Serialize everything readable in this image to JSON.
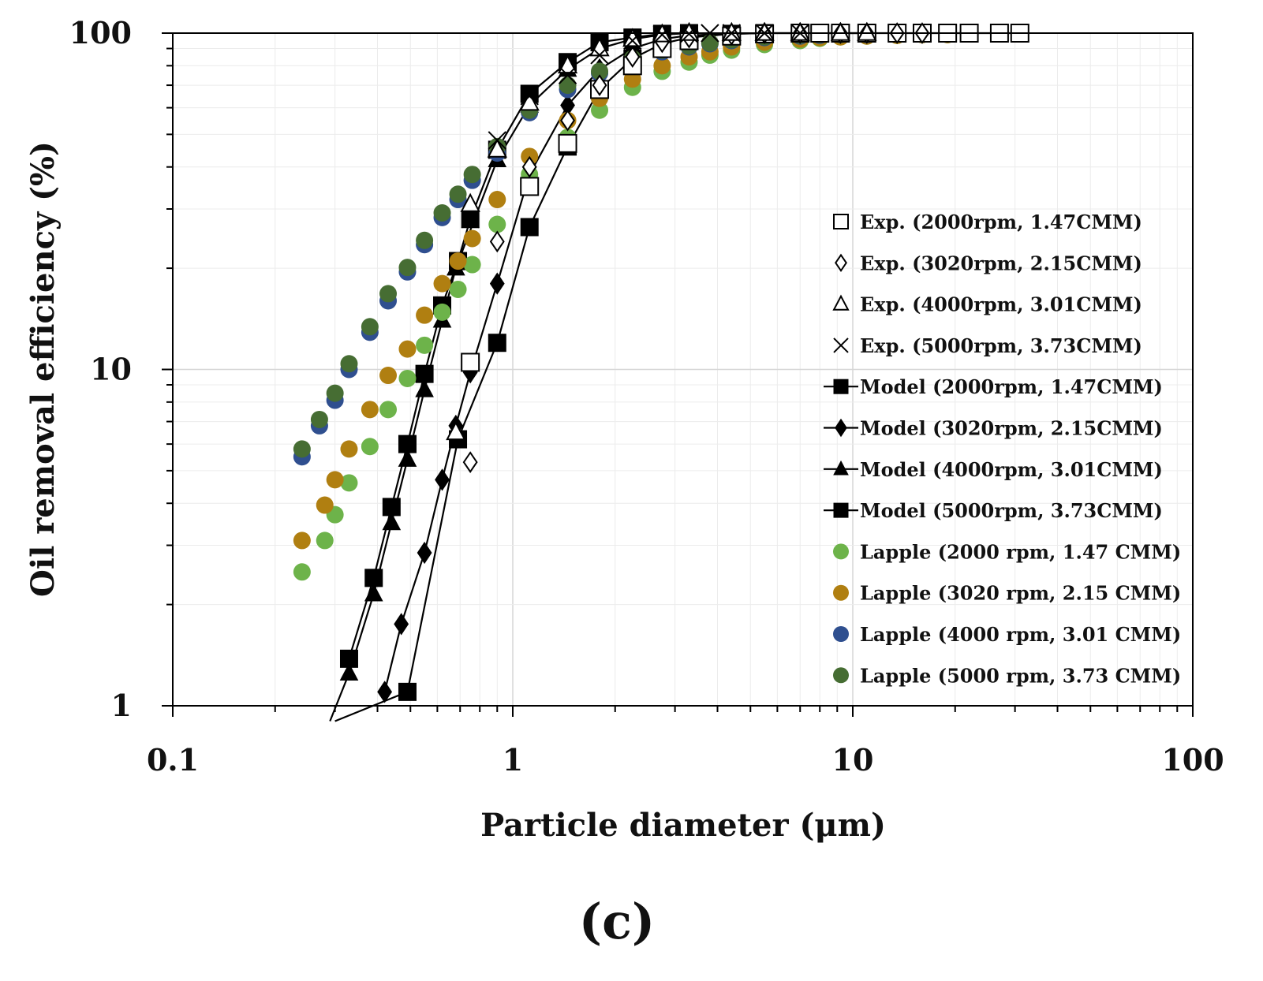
{
  "chart_data": {
    "type": "scatter",
    "panel_label": "(c)",
    "xlabel": "Particle diameter (μm)",
    "ylabel": "Oil removal efficiency (%)",
    "xscale": "log",
    "yscale": "log",
    "xlim": [
      0.1,
      100
    ],
    "ylim": [
      1,
      100
    ],
    "x_ticks": [
      {
        "value": 0.1,
        "label": "0.1"
      },
      {
        "value": 1,
        "label": "1"
      },
      {
        "value": 10,
        "label": "10"
      },
      {
        "value": 100,
        "label": "100"
      }
    ],
    "y_ticks": [
      {
        "value": 1,
        "label": "1"
      },
      {
        "value": 10,
        "label": "10"
      },
      {
        "value": 100,
        "label": "100"
      }
    ],
    "grid": true,
    "legend_position": "right",
    "series": [
      {
        "name": "Exp. (2000rpm, 1.47CMM)",
        "marker": "square-open",
        "color": "#000000",
        "line": false,
        "x": [
          0.75,
          1.12,
          1.45,
          1.8,
          2.25,
          2.75,
          3.3,
          4.4,
          5.5,
          7.0,
          8.0,
          9.2,
          11.0,
          13.5,
          16.0,
          19.0,
          22.0,
          27.0,
          31.0
        ],
        "y": [
          10.5,
          35,
          47,
          68,
          80,
          90,
          95,
          98,
          99.5,
          100,
          100,
          100,
          100,
          100,
          100,
          100,
          100,
          100,
          100
        ]
      },
      {
        "name": "Exp. (3020rpm, 2.15CMM)",
        "marker": "diamond-open",
        "color": "#000000",
        "line": false,
        "x": [
          0.75,
          0.9,
          1.12,
          1.45,
          1.8,
          2.25,
          2.75,
          3.3,
          4.4,
          5.5,
          7.0,
          9.2,
          11.0,
          13.5,
          16.0
        ],
        "y": [
          5.3,
          24,
          40,
          55,
          70,
          85,
          94,
          97,
          99,
          100,
          100,
          100,
          100,
          100,
          100
        ]
      },
      {
        "name": "Exp. (4000rpm, 3.01CMM)",
        "marker": "triangle-open",
        "color": "#000000",
        "line": false,
        "x": [
          0.68,
          0.75,
          0.9,
          1.12,
          1.45,
          1.8,
          2.25,
          2.75,
          3.3,
          4.4,
          5.5,
          7.0,
          9.2,
          11.0
        ],
        "y": [
          6.5,
          31,
          45,
          62,
          80,
          90,
          96,
          99,
          100,
          100,
          100,
          100,
          100,
          100
        ]
      },
      {
        "name": "Exp. (5000rpm, 3.73CMM)",
        "marker": "cross",
        "color": "#000000",
        "line": false,
        "x": [
          0.75,
          0.9,
          1.12,
          1.45,
          1.8,
          2.25,
          2.75,
          3.3,
          3.8,
          4.4,
          5.5,
          7.0
        ],
        "y": [
          28,
          48,
          65,
          75,
          86,
          95,
          99,
          99.5,
          100,
          100,
          100,
          100
        ]
      },
      {
        "name": "Model (2000rpm, 1.47CMM)",
        "marker": "square",
        "color": "#000000",
        "line": true,
        "x": [
          0.3,
          0.49,
          0.69,
          0.9,
          1.12,
          1.45,
          1.8,
          2.25,
          2.75,
          3.3,
          4.4,
          5.5,
          7.0,
          9.2,
          11.0,
          13.5,
          16.0,
          19.0,
          22.0,
          27.0,
          31.0
        ],
        "y": [
          0.9,
          1.1,
          6.2,
          12,
          26.5,
          46,
          68,
          84,
          93,
          97,
          99.5,
          100,
          100,
          100,
          100,
          100,
          100,
          100,
          100,
          100,
          100
        ]
      },
      {
        "name": "Model (3020rpm, 2.15CMM)",
        "marker": "diamond",
        "color": "#000000",
        "line": true,
        "x": [
          0.42,
          0.47,
          0.55,
          0.62,
          0.68,
          0.75,
          0.9,
          1.12,
          1.45,
          1.8,
          2.25,
          2.75,
          3.3,
          4.4,
          5.5,
          7.0,
          9.2,
          11.0
        ],
        "y": [
          1.1,
          1.75,
          2.85,
          4.7,
          6.8,
          9.8,
          18,
          38,
          61,
          78,
          90,
          96,
          98.5,
          99.5,
          100,
          100,
          100,
          100
        ]
      },
      {
        "name": "Model (4000rpm, 3.01CMM)",
        "marker": "triangle",
        "color": "#000000",
        "line": true,
        "x": [
          0.29,
          0.33,
          0.39,
          0.44,
          0.49,
          0.55,
          0.62,
          0.68,
          0.9,
          1.12,
          1.45,
          1.8,
          2.25,
          2.75,
          3.3
        ],
        "y": [
          0.9,
          1.25,
          2.15,
          3.5,
          5.4,
          8.7,
          14,
          20,
          42,
          61,
          78,
          90,
          96,
          99,
          100
        ]
      },
      {
        "name": "Model (5000rpm, 3.73CMM)",
        "marker": "square",
        "color": "#000000",
        "line": true,
        "x": [
          0.33,
          0.39,
          0.44,
          0.49,
          0.55,
          0.62,
          0.69,
          0.75,
          0.9,
          1.12,
          1.45,
          1.8,
          2.25,
          2.75,
          3.3
        ],
        "y": [
          1.38,
          2.4,
          3.9,
          6,
          9.7,
          15.5,
          21,
          28,
          45,
          66,
          82,
          94,
          97,
          99.5,
          100
        ]
      },
      {
        "name": "Lapple (2000 rpm, 1.47 CMM)",
        "marker": "circle",
        "color": "#6db34a",
        "line": false,
        "x": [
          0.24,
          0.28,
          0.3,
          0.33,
          0.38,
          0.43,
          0.49,
          0.55,
          0.62,
          0.69,
          0.76,
          0.9,
          1.12,
          1.45,
          1.8,
          2.25,
          2.75,
          3.3,
          3.8,
          4.4,
          5.5,
          7.0,
          8.0,
          9.2,
          11.0,
          13.5,
          16.0,
          19.0,
          22.0,
          27.0,
          31.0
        ],
        "y": [
          2.5,
          3.1,
          3.7,
          4.6,
          5.9,
          7.6,
          9.4,
          11.8,
          14.8,
          17.3,
          20.5,
          27,
          38,
          49,
          59,
          69,
          77,
          82,
          86,
          89,
          92.5,
          95,
          96.5,
          97.5,
          98,
          98.5,
          99,
          99,
          99.5,
          99.5,
          99.5
        ]
      },
      {
        "name": "Lapple (3020 rpm, 2.15 CMM)",
        "marker": "circle",
        "color": "#b07f11",
        "line": false,
        "x": [
          0.24,
          0.28,
          0.3,
          0.33,
          0.38,
          0.43,
          0.49,
          0.55,
          0.62,
          0.69,
          0.76,
          0.9,
          1.12,
          1.45,
          1.8,
          2.25,
          2.75,
          3.3,
          3.8,
          4.4,
          5.5,
          7.0,
          8.0,
          9.2,
          11.0,
          13.5,
          16.0,
          19.0,
          22.0,
          27.0,
          31.0
        ],
        "y": [
          3.1,
          3.95,
          4.7,
          5.8,
          7.6,
          9.6,
          11.5,
          14.5,
          18,
          21,
          24.5,
          32,
          43,
          55,
          64,
          73,
          80,
          85,
          88,
          91,
          94,
          96,
          97,
          97.5,
          98,
          98.5,
          99,
          99,
          99.5,
          99.5,
          99.5
        ]
      },
      {
        "name": "Lapple (4000 rpm, 3.01 CMM)",
        "marker": "circle",
        "color": "#2f4f8f",
        "line": false,
        "x": [
          0.24,
          0.27,
          0.3,
          0.33,
          0.38,
          0.43,
          0.49,
          0.55,
          0.62,
          0.69,
          0.76,
          0.9,
          1.12,
          1.45,
          1.8,
          2.25,
          2.75,
          3.3,
          3.8,
          4.4,
          5.5,
          7.0,
          8.0,
          9.2,
          11.0,
          13.5,
          16.0,
          19.0,
          22.0,
          27.0,
          31.0
        ],
        "y": [
          5.5,
          6.8,
          8.1,
          10,
          12.9,
          16,
          19.5,
          23.5,
          28.3,
          32,
          36.5,
          44,
          58,
          68,
          76,
          83,
          88,
          91,
          93,
          95,
          97,
          98,
          98.5,
          99,
          99,
          99.5,
          99.5,
          99.5,
          100,
          100,
          100
        ]
      },
      {
        "name": "Lapple (5000 rpm, 3.73 CMM)",
        "marker": "circle",
        "color": "#466d33",
        "line": false,
        "x": [
          0.24,
          0.27,
          0.3,
          0.33,
          0.38,
          0.43,
          0.49,
          0.55,
          0.62,
          0.69,
          0.76,
          0.9,
          1.12,
          1.45,
          1.8,
          2.25,
          2.75,
          3.3,
          3.8,
          4.4,
          5.5,
          7.0,
          8.0,
          9.2,
          11.0,
          13.5,
          16.0,
          19.0,
          22.0,
          27.0,
          31.0
        ],
        "y": [
          5.8,
          7.1,
          8.5,
          10.4,
          13.4,
          16.8,
          20.1,
          24.2,
          29.2,
          33.2,
          38,
          46,
          59,
          70,
          77,
          84,
          89,
          91.5,
          93.5,
          95.5,
          97.5,
          98.5,
          99,
          99,
          99.5,
          99.5,
          99.5,
          100,
          100,
          100,
          100
        ]
      }
    ]
  }
}
